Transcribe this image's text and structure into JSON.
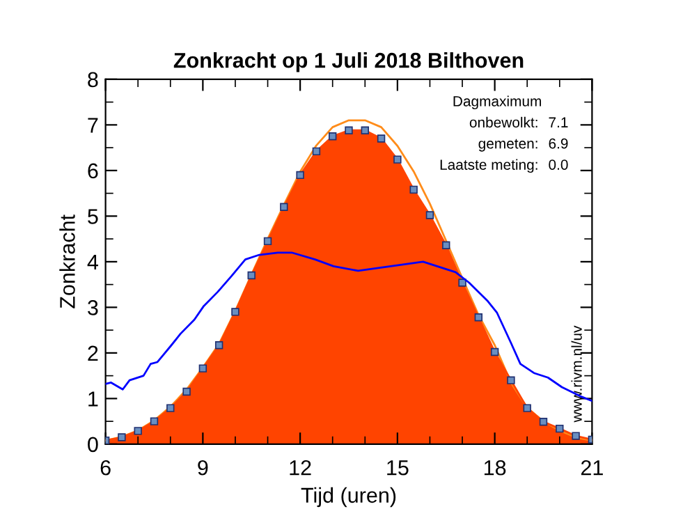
{
  "chart_data": {
    "type": "line",
    "title": "Zonkracht op 1 Juli 2018 Bilthoven",
    "xlabel": "Tijd (uren)",
    "ylabel": "Zonkracht",
    "x": [
      6,
      6.5,
      7,
      7.5,
      8,
      8.5,
      9,
      9.5,
      10,
      10.5,
      11,
      11.5,
      12,
      12.5,
      13,
      13.5,
      14,
      14.5,
      15,
      15.5,
      16,
      16.5,
      17,
      17.5,
      18,
      18.5,
      19,
      19.5,
      20,
      20.5,
      21
    ],
    "series": [
      {
        "type": "area",
        "color": "#ff4400",
        "marker": "square",
        "values": [
          0.08,
          0.15,
          0.29,
          0.5,
          0.79,
          1.15,
          1.66,
          2.17,
          2.9,
          3.7,
          4.45,
          5.2,
          5.9,
          6.42,
          6.75,
          6.88,
          6.88,
          6.7,
          6.24,
          5.58,
          5.02,
          4.36,
          3.54,
          2.78,
          2.02,
          1.4,
          0.79,
          0.49,
          0.34,
          0.18,
          0.1
        ]
      },
      {
        "type": "line",
        "color": "#ff8c1a",
        "values": [
          0.08,
          0.16,
          0.3,
          0.52,
          0.82,
          1.2,
          1.68,
          2.2,
          2.92,
          3.72,
          4.5,
          5.25,
          5.97,
          6.55,
          6.95,
          7.1,
          7.1,
          6.95,
          6.54,
          5.98,
          5.27,
          4.46,
          3.64,
          2.83,
          2.17,
          1.35,
          0.8,
          0.5,
          0.3,
          0.15,
          0.08
        ]
      },
      {
        "type": "line",
        "color": "#0000ff",
        "x": [
          6.0,
          6.17,
          6.53,
          6.74,
          7.17,
          7.39,
          7.6,
          8.03,
          8.31,
          8.74,
          9.03,
          9.46,
          9.89,
          10.31,
          10.74,
          11.31,
          11.74,
          12.46,
          13.03,
          13.79,
          14.79,
          15.79,
          16.79,
          17.21,
          17.79,
          18.07,
          18.5,
          18.79,
          19.21,
          19.64,
          20.07,
          20.64,
          21.0
        ],
        "values": [
          1.32,
          1.35,
          1.2,
          1.4,
          1.5,
          1.76,
          1.8,
          2.17,
          2.42,
          2.73,
          3.03,
          3.34,
          3.69,
          4.05,
          4.15,
          4.2,
          4.2,
          4.05,
          3.9,
          3.8,
          3.9,
          4.0,
          3.77,
          3.54,
          3.13,
          2.88,
          2.22,
          1.76,
          1.56,
          1.46,
          1.25,
          1.05,
          0.95
        ]
      }
    ],
    "xlim": [
      6,
      21
    ],
    "ylim": [
      0,
      8
    ],
    "xticks": [
      6,
      {
        "value": 7,
        "label": null
      },
      {
        "value": 8,
        "label": null
      },
      9,
      {
        "value": 10,
        "label": null
      },
      {
        "value": 11,
        "label": null
      },
      12,
      {
        "value": 13,
        "label": null
      },
      {
        "value": 14,
        "label": null
      },
      15,
      {
        "value": 16,
        "label": null
      },
      {
        "value": 17,
        "label": null
      },
      18,
      {
        "value": 19,
        "label": null
      },
      {
        "value": 20,
        "label": null
      },
      21
    ],
    "yticks": [
      0,
      {
        "value": 0.5,
        "label": null
      },
      1,
      {
        "value": 1.5,
        "label": null
      },
      2,
      {
        "value": 2.5,
        "label": null
      },
      3,
      {
        "value": 3.5,
        "label": null
      },
      4,
      {
        "value": 4.5,
        "label": null
      },
      5,
      {
        "value": 5.5,
        "label": null
      },
      6,
      {
        "value": 6.5,
        "label": null
      },
      7,
      {
        "value": 7.5,
        "label": null
      },
      8
    ],
    "grid": false,
    "legend": false,
    "annotations": [
      "Dagmaximum",
      "onbewolkt: 7.1",
      "gemeten: 6.9",
      "Laatste meting: 0.0",
      "www.rivm.nl/uv"
    ]
  }
}
